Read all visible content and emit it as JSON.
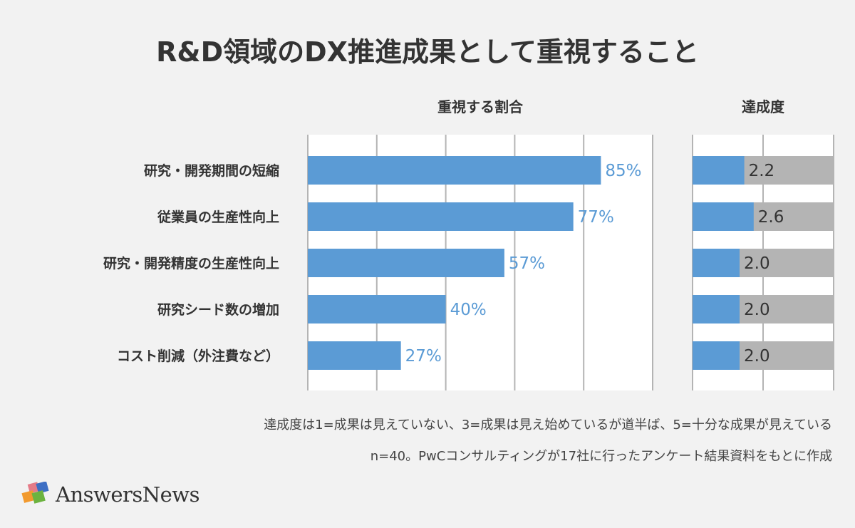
{
  "title": "R&D領域のDX推進成果として重視すること",
  "chart_data": [
    {
      "type": "bar",
      "orientation": "horizontal",
      "title": "重視する割合",
      "categories": [
        "研究・開発期間の短縮",
        "従業員の生産性向上",
        "研究・開発精度の生産性向上",
        "研究シード数の増加",
        "コスト削減（外注費など）"
      ],
      "values": [
        85,
        77,
        57,
        40,
        27
      ],
      "data_labels": [
        "85%",
        "77%",
        "57%",
        "40%",
        "27%"
      ],
      "xlim": [
        0,
        100
      ],
      "unit": "%",
      "grid": true,
      "color": "#5b9bd5"
    },
    {
      "type": "bar",
      "orientation": "horizontal",
      "title": "達成度",
      "categories": [
        "研究・開発期間の短縮",
        "従業員の生産性向上",
        "研究・開発精度の生産性向上",
        "研究シード数の増加",
        "コスト削減（外注費など）"
      ],
      "values": [
        2.2,
        2.6,
        2.0,
        2.0,
        2.0
      ],
      "data_labels": [
        "2.2",
        "2.6",
        "2.0",
        "2.0",
        "2.0"
      ],
      "xlim": [
        0,
        6
      ],
      "grid": true,
      "color": "#5b9bd5",
      "background_color": "#b4b4b4"
    }
  ],
  "notes": [
    "達成度は1=成果は見えていない、3=成果は見え始めているが道半ば、5=十分な成果が見えている",
    "n=40。PwCコンサルティングが17社に行ったアンケート結果資料をもとに作成"
  ],
  "logo": "AnswersNews"
}
